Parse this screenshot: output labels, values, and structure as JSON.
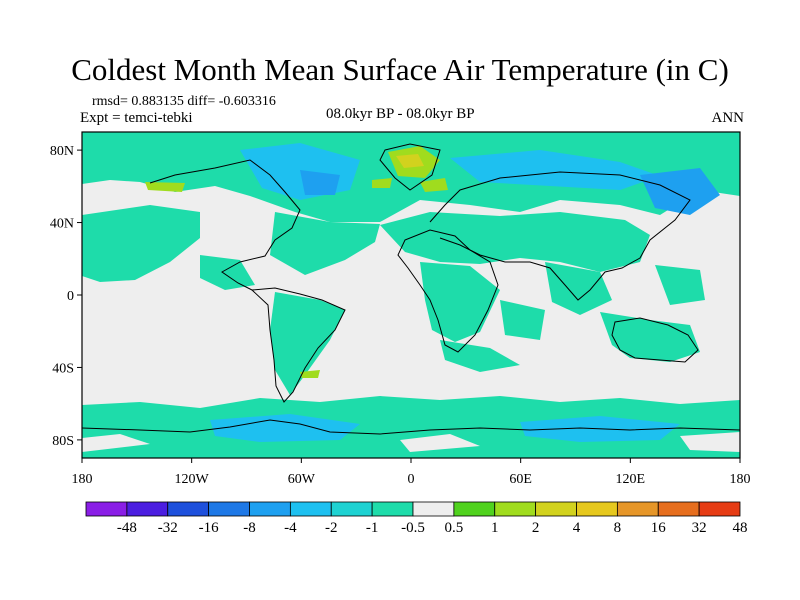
{
  "plot": {
    "title": "Coldest Month Mean Surface Air Temperature (in C)",
    "stats": "rmsd= 0.883135 diff= -0.603316",
    "expt": "Expt = temci-tebki",
    "period": "08.0kyr BP - 08.0kyr BP",
    "season": "ANN"
  },
  "axes": {
    "lat_labels": [
      {
        "text": "80N",
        "lat": 80
      },
      {
        "text": "40N",
        "lat": 40
      },
      {
        "text": "0",
        "lat": 0
      },
      {
        "text": "40S",
        "lat": -40
      },
      {
        "text": "80S",
        "lat": -80
      }
    ],
    "lon_labels": [
      {
        "text": "180",
        "lon": -180
      },
      {
        "text": "120W",
        "lon": -120
      },
      {
        "text": "60W",
        "lon": -60
      },
      {
        "text": "0",
        "lon": 0
      },
      {
        "text": "60E",
        "lon": 60
      },
      {
        "text": "120E",
        "lon": 120
      },
      {
        "text": "180",
        "lon": 180
      }
    ],
    "lat_range": [
      -90,
      90
    ],
    "lon_range": [
      -180,
      180
    ]
  },
  "colorbar": {
    "colors": [
      "#8a1ee6",
      "#4b1ee0",
      "#1e50dc",
      "#1e78e6",
      "#1ea0f0",
      "#1ec0f0",
      "#1ed2d2",
      "#1edcaa",
      "#eeeeee",
      "#50d21e",
      "#a0dc1e",
      "#d2d21e",
      "#e6c81e",
      "#e69628",
      "#e66e1e",
      "#e63c14"
    ],
    "labels": [
      "-48",
      "-32",
      "-16",
      "-8",
      "-4",
      "-2",
      "-1",
      "-0.5",
      "0.5",
      "1",
      "2",
      "4",
      "8",
      "16",
      "32",
      "48"
    ]
  },
  "colors": {
    "neutral": "#eeeeee",
    "cool": "#1edcaa",
    "cooler": "#1ec0f0",
    "coolest": "#1ea0f0",
    "warm": "#a0dc1e",
    "warmer": "#d2d21e",
    "coast": "#000000"
  }
}
